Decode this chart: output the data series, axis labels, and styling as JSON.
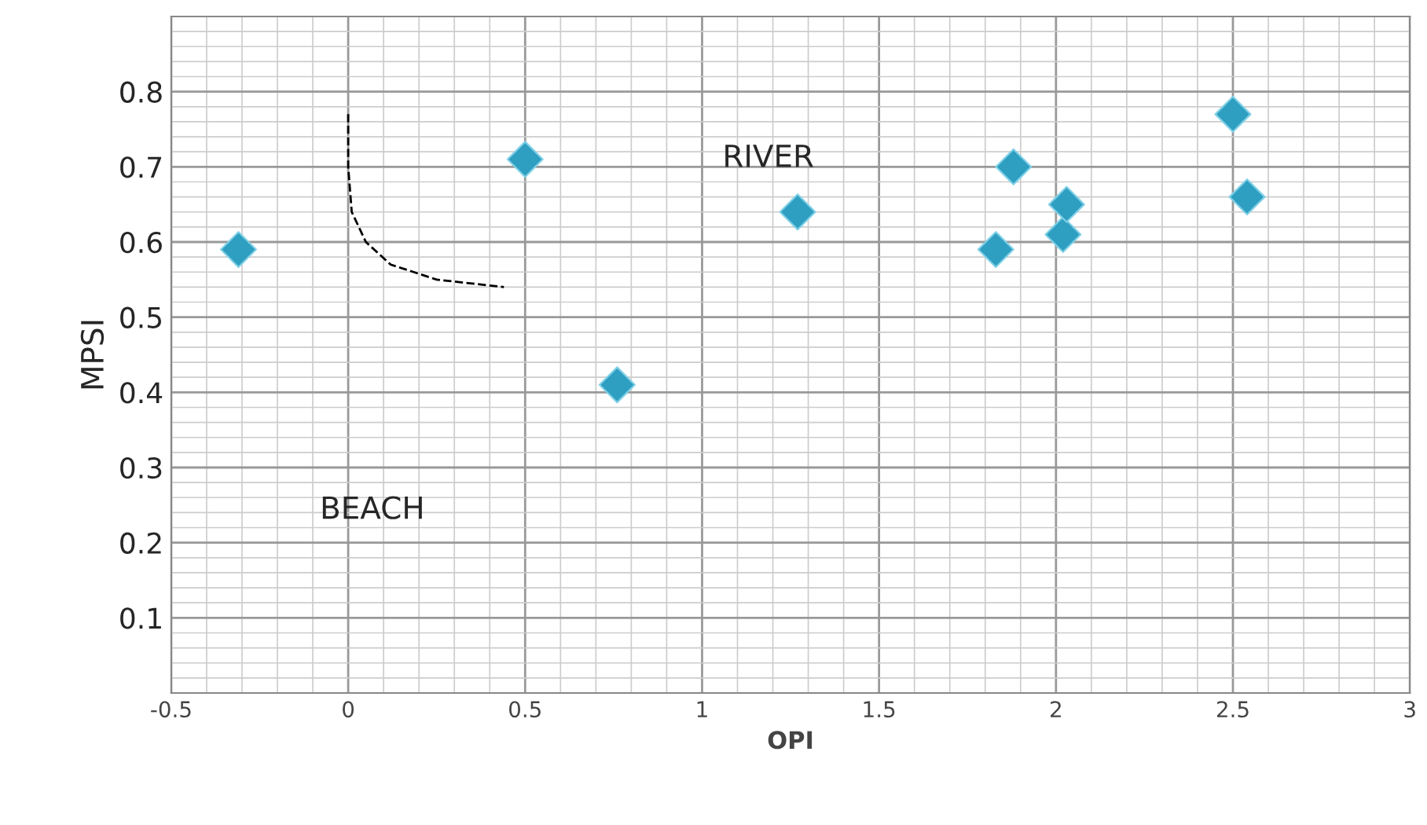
{
  "chart_data": {
    "type": "scatter",
    "xlabel": "OPI",
    "ylabel": "MPSI",
    "xlim": [
      -0.5,
      3
    ],
    "xticks": [
      -0.5,
      0,
      0.5,
      1,
      1.5,
      2,
      2.5,
      3
    ],
    "ylim": [
      0,
      0.9
    ],
    "yticks": [
      0.1,
      0.2,
      0.3,
      0.4,
      0.5,
      0.6,
      0.7,
      0.8
    ],
    "grid": true,
    "legend": false,
    "marker": "diamond",
    "series": [
      {
        "color": "#2e9ec1",
        "x": [
          -0.31,
          0.5,
          0.76,
          1.27,
          1.83,
          1.88,
          2.02,
          2.03,
          2.5,
          2.54
        ],
        "values": [
          0.59,
          0.71,
          0.41,
          0.64,
          0.59,
          0.7,
          0.61,
          0.65,
          0.77,
          0.66
        ]
      },
      {
        "type": "line",
        "color": "#000000",
        "line_style": "dashed",
        "marker": "none",
        "x": [
          0,
          0.0,
          0.01,
          0.05,
          0.12,
          0.25,
          0.44
        ],
        "values": [
          0.77,
          0.7,
          0.64,
          0.6,
          0.57,
          0.55,
          0.54
        ]
      }
    ],
    "annotations": [
      "BEACH",
      "RIVER"
    ]
  }
}
